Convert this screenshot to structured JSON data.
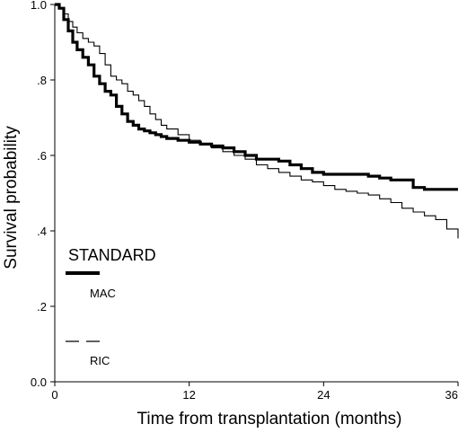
{
  "chart_data": {
    "type": "line",
    "title": "",
    "xlabel": "Time from transplantation (months)",
    "ylabel": "Survival probability",
    "xlim": [
      0,
      36
    ],
    "ylim": [
      0,
      1
    ],
    "x_ticks": [
      0,
      12,
      24,
      36
    ],
    "x_tick_labels": [
      "0",
      "12",
      "24",
      "36"
    ],
    "y_ticks": [
      0,
      0.2,
      0.4,
      0.6,
      0.8,
      1.0
    ],
    "y_tick_labels": [
      "0.0",
      ".2",
      ".4",
      ".6",
      ".8",
      "1.0"
    ],
    "grid": false,
    "legend": {
      "title": "STANDARD",
      "placement": "bottom-left",
      "entries": [
        "MAC",
        "RIC"
      ]
    },
    "series": [
      {
        "name": "MAC",
        "style": "thick",
        "color": "#000000",
        "x": [
          0,
          0.4,
          0.8,
          1.2,
          1.6,
          2.0,
          2.5,
          3.0,
          3.5,
          4.0,
          4.5,
          5.0,
          5.5,
          6.0,
          6.5,
          7.0,
          7.5,
          8.0,
          8.5,
          9.0,
          9.5,
          10.0,
          11.0,
          12.0,
          13.0,
          14.0,
          15.0,
          16.0,
          17.0,
          18.0,
          19.0,
          20.0,
          21.0,
          22.0,
          23.0,
          24.0,
          25.0,
          26.0,
          27.0,
          28.0,
          29.0,
          30.0,
          31.0,
          32.0,
          33.0,
          34.0,
          35.0,
          36.0
        ],
        "y": [
          1.0,
          0.99,
          0.96,
          0.93,
          0.9,
          0.88,
          0.86,
          0.84,
          0.81,
          0.79,
          0.77,
          0.76,
          0.73,
          0.71,
          0.69,
          0.68,
          0.67,
          0.665,
          0.66,
          0.655,
          0.65,
          0.645,
          0.64,
          0.635,
          0.63,
          0.625,
          0.62,
          0.61,
          0.6,
          0.59,
          0.59,
          0.585,
          0.575,
          0.565,
          0.555,
          0.55,
          0.55,
          0.55,
          0.55,
          0.545,
          0.54,
          0.535,
          0.535,
          0.515,
          0.51,
          0.51,
          0.51,
          0.51
        ]
      },
      {
        "name": "RIC",
        "style": "thin",
        "color": "#000000",
        "x": [
          0,
          0.4,
          0.8,
          1.2,
          1.6,
          2.0,
          2.5,
          3.0,
          3.5,
          4.0,
          4.5,
          5.0,
          5.5,
          6.0,
          6.5,
          7.0,
          7.5,
          8.0,
          8.5,
          9.0,
          9.5,
          10.0,
          11.0,
          12.0,
          13.0,
          14.0,
          15.0,
          16.0,
          17.0,
          18.0,
          19.0,
          20.0,
          21.0,
          22.0,
          23.0,
          24.0,
          25.0,
          26.0,
          27.0,
          28.0,
          29.0,
          30.0,
          31.0,
          32.0,
          33.0,
          34.0,
          35.0,
          36.0
        ],
        "y": [
          1.0,
          0.99,
          0.975,
          0.955,
          0.94,
          0.925,
          0.91,
          0.9,
          0.89,
          0.87,
          0.84,
          0.81,
          0.8,
          0.79,
          0.77,
          0.76,
          0.745,
          0.73,
          0.71,
          0.695,
          0.68,
          0.67,
          0.655,
          0.64,
          0.63,
          0.62,
          0.61,
          0.6,
          0.59,
          0.575,
          0.565,
          0.555,
          0.545,
          0.535,
          0.53,
          0.52,
          0.51,
          0.505,
          0.5,
          0.495,
          0.485,
          0.475,
          0.46,
          0.45,
          0.44,
          0.43,
          0.405,
          0.38
        ]
      }
    ]
  }
}
